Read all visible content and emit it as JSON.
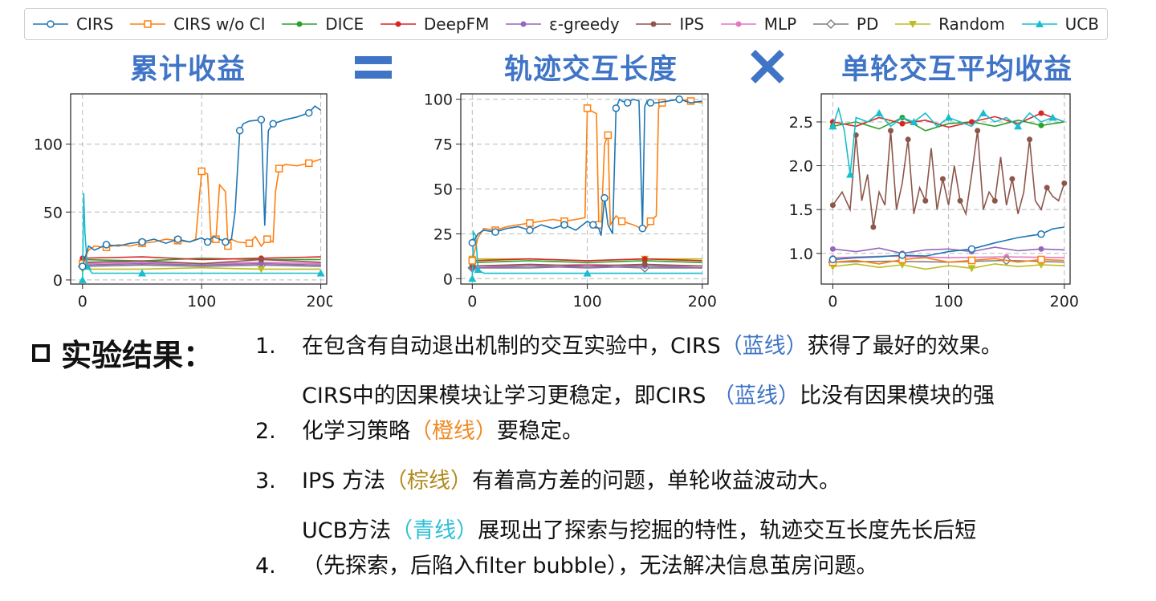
{
  "legend": [
    {
      "label": "CIRS",
      "color": "#1f77b4",
      "marker": "circle"
    },
    {
      "label": "CIRS w/o CI",
      "color": "#ff7f0e",
      "marker": "square"
    },
    {
      "label": "DICE",
      "color": "#2ca02c",
      "marker": "circle-filled"
    },
    {
      "label": "DeepFM",
      "color": "#d62728",
      "marker": "circle-filled"
    },
    {
      "label": "ε-greedy",
      "color": "#9467bd",
      "marker": "circle-filled"
    },
    {
      "label": "IPS",
      "color": "#8c564b",
      "marker": "circle-filled"
    },
    {
      "label": "MLP",
      "color": "#e377c2",
      "marker": "circle-filled"
    },
    {
      "label": "PD",
      "color": "#7f7f7f",
      "marker": "diamond"
    },
    {
      "label": "Random",
      "color": "#bcbd22",
      "marker": "triangle-down"
    },
    {
      "label": "UCB",
      "color": "#17becf",
      "marker": "triangle-up"
    }
  ],
  "headings": {
    "cumulative": "累计收益",
    "length": "轨迹交互长度",
    "avg": "单轮交互平均收益"
  },
  "results": {
    "label": "实验结果：",
    "items": [
      {
        "num": "1.",
        "parts": [
          {
            "text": "在包含有自动退出机制的交互实验中，CIRS",
            "color": ""
          },
          {
            "text": "（蓝线）",
            "color": "blue"
          },
          {
            "text": "获得了最好的效果。",
            "color": ""
          }
        ]
      },
      {
        "num": "2.",
        "parts": [
          {
            "text": "CIRS中的因果模块让学习更稳定，即CIRS ",
            "color": ""
          },
          {
            "text": "（蓝线）",
            "color": "blue"
          },
          {
            "text": "比没有因果模块的强",
            "color": ""
          }
        ],
        "line2": [
          {
            "text": "化学习策略",
            "color": ""
          },
          {
            "text": "（橙线）",
            "color": "orange"
          },
          {
            "text": "要稳定。",
            "color": ""
          }
        ]
      },
      {
        "num": "3.",
        "parts": [
          {
            "text": "IPS 方法",
            "color": ""
          },
          {
            "text": "（棕线）",
            "color": "brown"
          },
          {
            "text": "有着高方差的问题，单轮收益波动大。",
            "color": ""
          }
        ]
      },
      {
        "num": "4.",
        "parts": [
          {
            "text": "UCB方法",
            "color": ""
          },
          {
            "text": "（青线）",
            "color": "cyan"
          },
          {
            "text": "展现出了探索与挖掘的特性，轨迹交互长度先长后短",
            "color": ""
          }
        ],
        "line2": [
          {
            "text": "（先探索，后陷入filter bubble），无法解决信息茧房问题。",
            "color": ""
          }
        ]
      }
    ]
  },
  "chart_data": [
    {
      "type": "line",
      "title": "",
      "xlabel": "",
      "ylabel": "",
      "xlim": [
        -10,
        205
      ],
      "ylim": [
        -3,
        137
      ],
      "xticks": [
        0,
        100,
        200
      ],
      "yticks": [
        0,
        50,
        100
      ],
      "grid": true,
      "series": [
        {
          "name": "CIRS",
          "color": "#1f77b4",
          "x": [
            0,
            5,
            10,
            20,
            30,
            40,
            50,
            60,
            70,
            80,
            90,
            100,
            105,
            110,
            115,
            120,
            125,
            128,
            132,
            135,
            140,
            150,
            153,
            156,
            160,
            170,
            180,
            190,
            195,
            200
          ],
          "y": [
            10,
            25,
            22,
            26,
            25,
            27,
            28,
            30,
            27,
            30,
            28,
            31,
            28,
            32,
            30,
            28,
            30,
            50,
            110,
            115,
            117,
            118,
            40,
            110,
            115,
            118,
            120,
            123,
            128,
            125
          ]
        },
        {
          "name": "CIRS w/o CI",
          "color": "#ff7f0e",
          "x": [
            0,
            5,
            10,
            20,
            30,
            40,
            50,
            60,
            70,
            80,
            90,
            95,
            100,
            105,
            108,
            112,
            115,
            120,
            122,
            125,
            130,
            140,
            145,
            150,
            155,
            160,
            162,
            165,
            170,
            180,
            190,
            200
          ],
          "y": [
            12,
            22,
            25,
            24,
            26,
            25,
            27,
            28,
            30,
            29,
            28,
            30,
            80,
            78,
            28,
            30,
            70,
            65,
            25,
            30,
            28,
            27,
            32,
            25,
            30,
            28,
            65,
            82,
            85,
            84,
            86,
            89
          ]
        },
        {
          "name": "DICE",
          "color": "#2ca02c",
          "x": [
            0,
            50,
            100,
            150,
            200
          ],
          "y": [
            15,
            14,
            16,
            15,
            15
          ]
        },
        {
          "name": "DeepFM",
          "color": "#d62728",
          "x": [
            0,
            50,
            100,
            150,
            200
          ],
          "y": [
            16,
            17,
            15,
            16,
            17
          ]
        },
        {
          "name": "ε-greedy",
          "color": "#9467bd",
          "x": [
            0,
            50,
            100,
            150,
            200
          ],
          "y": [
            11,
            12,
            11,
            12,
            11
          ]
        },
        {
          "name": "IPS",
          "color": "#8c564b",
          "x": [
            0,
            50,
            100,
            150,
            200
          ],
          "y": [
            13,
            14,
            12,
            15,
            13
          ]
        },
        {
          "name": "MLP",
          "color": "#e377c2",
          "x": [
            0,
            50,
            100,
            150,
            200
          ],
          "y": [
            12,
            13,
            12,
            13,
            12
          ]
        },
        {
          "name": "PD",
          "color": "#7f7f7f",
          "x": [
            0,
            50,
            100,
            150,
            200
          ],
          "y": [
            10,
            11,
            10,
            11,
            10
          ]
        },
        {
          "name": "Random",
          "color": "#bcbd22",
          "x": [
            0,
            50,
            100,
            150,
            200
          ],
          "y": [
            8,
            8,
            9,
            8,
            8
          ]
        },
        {
          "name": "UCB",
          "color": "#17becf",
          "x": [
            0,
            1,
            2,
            4,
            8,
            20,
            50,
            100,
            150,
            200
          ],
          "y": [
            0,
            64,
            35,
            10,
            5,
            5,
            5,
            5,
            5,
            5
          ]
        }
      ]
    },
    {
      "type": "line",
      "title": "",
      "xlabel": "",
      "ylabel": "",
      "xlim": [
        -10,
        205
      ],
      "ylim": [
        -3,
        103
      ],
      "xticks": [
        0,
        100,
        200
      ],
      "yticks": [
        0,
        25,
        50,
        75,
        100
      ],
      "grid": true,
      "series": [
        {
          "name": "CIRS",
          "color": "#1f77b4",
          "x": [
            0,
            5,
            10,
            20,
            30,
            40,
            50,
            60,
            70,
            80,
            90,
            100,
            105,
            110,
            112,
            115,
            118,
            122,
            125,
            128,
            130,
            135,
            140,
            145,
            148,
            150,
            152,
            155,
            160,
            170,
            180,
            190,
            200
          ],
          "y": [
            20,
            25,
            27,
            26,
            28,
            29,
            27,
            30,
            28,
            30,
            27,
            32,
            30,
            28,
            24,
            45,
            30,
            25,
            95,
            100,
            99,
            98,
            100,
            99,
            28,
            96,
            99,
            98,
            98,
            99,
            100,
            98,
            99
          ]
        },
        {
          "name": "CIRS w/o CI",
          "color": "#ff7f0e",
          "x": [
            0,
            5,
            10,
            20,
            30,
            40,
            50,
            60,
            70,
            80,
            90,
            98,
            100,
            105,
            108,
            110,
            112,
            115,
            118,
            120,
            125,
            130,
            140,
            150,
            155,
            160,
            162,
            165,
            170,
            180,
            190,
            200
          ],
          "y": [
            10,
            23,
            28,
            27,
            29,
            30,
            31,
            32,
            33,
            32,
            33,
            34,
            95,
            93,
            92,
            30,
            28,
            75,
            80,
            30,
            35,
            32,
            30,
            27,
            32,
            35,
            95,
            98,
            99,
            100,
            99,
            98
          ]
        },
        {
          "name": "DICE",
          "color": "#2ca02c",
          "x": [
            0,
            50,
            100,
            150,
            200
          ],
          "y": [
            9,
            10,
            9,
            10,
            9
          ]
        },
        {
          "name": "DeepFM",
          "color": "#d62728",
          "x": [
            0,
            50,
            100,
            150,
            200
          ],
          "y": [
            10,
            11,
            10,
            11,
            10
          ]
        },
        {
          "name": "ε-greedy",
          "color": "#9467bd",
          "x": [
            0,
            50,
            100,
            150,
            200
          ],
          "y": [
            6,
            7,
            6,
            7,
            6
          ]
        },
        {
          "name": "IPS",
          "color": "#8c564b",
          "x": [
            0,
            50,
            100,
            150,
            200
          ],
          "y": [
            7,
            8,
            7,
            8,
            7
          ]
        },
        {
          "name": "MLP",
          "color": "#e377c2",
          "x": [
            0,
            50,
            100,
            150,
            200
          ],
          "y": [
            7,
            7,
            8,
            7,
            7
          ]
        },
        {
          "name": "PD",
          "color": "#7f7f7f",
          "x": [
            0,
            50,
            100,
            150,
            200
          ],
          "y": [
            6,
            6,
            7,
            6,
            6
          ]
        },
        {
          "name": "Random",
          "color": "#bcbd22",
          "x": [
            0,
            50,
            100,
            150,
            200
          ],
          "y": [
            11,
            11,
            10,
            11,
            11
          ]
        },
        {
          "name": "UCB",
          "color": "#17becf",
          "x": [
            0,
            1,
            3,
            5,
            10,
            50,
            100,
            150,
            200
          ],
          "y": [
            0,
            26,
            24,
            5,
            3,
            3,
            3,
            3,
            3
          ]
        }
      ]
    },
    {
      "type": "line",
      "title": "",
      "xlabel": "",
      "ylabel": "",
      "xlim": [
        -10,
        205
      ],
      "ylim": [
        0.65,
        2.82
      ],
      "xticks": [
        0,
        100,
        200
      ],
      "yticks": [
        1.0,
        1.5,
        2.0,
        2.5
      ],
      "grid": true,
      "series": [
        {
          "name": "CIRS",
          "color": "#1f77b4",
          "x": [
            0,
            20,
            40,
            60,
            80,
            100,
            120,
            140,
            160,
            180,
            190,
            200
          ],
          "y": [
            0.93,
            0.95,
            0.96,
            0.98,
            0.97,
            1.02,
            1.05,
            1.12,
            1.18,
            1.22,
            1.28,
            1.3
          ]
        },
        {
          "name": "CIRS w/o CI",
          "color": "#ff7f0e",
          "x": [
            0,
            20,
            40,
            60,
            80,
            100,
            120,
            140,
            160,
            180,
            200
          ],
          "y": [
            0.9,
            0.92,
            0.88,
            0.93,
            0.95,
            0.9,
            0.92,
            0.94,
            0.9,
            0.93,
            0.92
          ]
        },
        {
          "name": "DICE",
          "color": "#2ca02c",
          "x": [
            0,
            20,
            40,
            60,
            80,
            100,
            120,
            140,
            160,
            180,
            200
          ],
          "y": [
            2.45,
            2.5,
            2.42,
            2.55,
            2.4,
            2.48,
            2.5,
            2.45,
            2.52,
            2.46,
            2.5
          ]
        },
        {
          "name": "DeepFM",
          "color": "#d62728",
          "x": [
            0,
            20,
            40,
            60,
            80,
            100,
            120,
            140,
            160,
            180,
            200
          ],
          "y": [
            2.5,
            2.45,
            2.55,
            2.48,
            2.52,
            2.44,
            2.5,
            2.56,
            2.48,
            2.6,
            2.5
          ]
        },
        {
          "name": "ε-greedy",
          "color": "#9467bd",
          "x": [
            0,
            20,
            40,
            60,
            80,
            100,
            120,
            140,
            160,
            180,
            200
          ],
          "y": [
            1.05,
            1.02,
            1.06,
            1.0,
            1.04,
            1.05,
            1.02,
            1.07,
            1.03,
            1.05,
            1.04
          ]
        },
        {
          "name": "IPS",
          "color": "#8c564b",
          "x": [
            0,
            8,
            15,
            20,
            25,
            30,
            35,
            40,
            45,
            50,
            55,
            60,
            65,
            70,
            75,
            80,
            85,
            90,
            95,
            100,
            105,
            110,
            115,
            120,
            125,
            130,
            135,
            140,
            145,
            150,
            155,
            160,
            165,
            170,
            175,
            180,
            185,
            190,
            195,
            200
          ],
          "y": [
            1.55,
            1.7,
            1.5,
            2.35,
            1.6,
            1.9,
            1.3,
            1.7,
            1.55,
            2.4,
            1.5,
            1.8,
            2.3,
            1.45,
            1.75,
            1.6,
            2.2,
            1.5,
            1.85,
            1.55,
            2.0,
            1.6,
            1.45,
            1.9,
            2.4,
            1.5,
            1.7,
            1.6,
            2.1,
            1.55,
            1.85,
            1.45,
            1.7,
            2.3,
            1.6,
            1.5,
            1.75,
            1.65,
            1.6,
            1.8
          ]
        },
        {
          "name": "MLP",
          "color": "#e377c2",
          "x": [
            0,
            50,
            100,
            150,
            200
          ],
          "y": [
            0.95,
            0.97,
            0.95,
            0.96,
            0.95
          ]
        },
        {
          "name": "PD",
          "color": "#7f7f7f",
          "x": [
            0,
            50,
            100,
            150,
            200
          ],
          "y": [
            0.9,
            0.91,
            0.9,
            0.92,
            0.9
          ]
        },
        {
          "name": "Random",
          "color": "#bcbd22",
          "x": [
            0,
            20,
            40,
            60,
            80,
            100,
            120,
            140,
            160,
            180,
            200
          ],
          "y": [
            0.85,
            0.88,
            0.84,
            0.87,
            0.82,
            0.86,
            0.83,
            0.88,
            0.85,
            0.87,
            0.86
          ]
        },
        {
          "name": "UCB",
          "color": "#17becf",
          "x": [
            0,
            5,
            10,
            15,
            20,
            30,
            40,
            50,
            60,
            70,
            80,
            90,
            100,
            110,
            120,
            130,
            140,
            150,
            160,
            170,
            180,
            190,
            200
          ],
          "y": [
            2.45,
            2.65,
            2.4,
            1.9,
            2.55,
            2.5,
            2.6,
            2.45,
            2.55,
            2.5,
            2.6,
            2.45,
            2.55,
            2.5,
            2.45,
            2.6,
            2.5,
            2.55,
            2.45,
            2.6,
            2.5,
            2.55,
            2.5
          ]
        }
      ]
    }
  ]
}
